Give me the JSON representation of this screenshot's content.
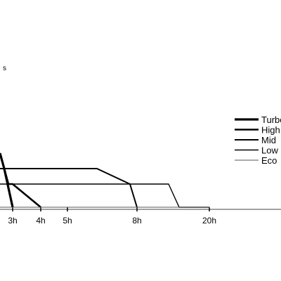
{
  "chart_data": {
    "type": "line",
    "title": "",
    "xlabel": "",
    "ylabel": "s",
    "x_ticks": [
      "3h",
      "4h",
      "5h",
      "8h",
      "20h"
    ],
    "grid": false,
    "legend_position": "right",
    "series": [
      {
        "name": "Turbo",
        "stroke": "heavy",
        "points": [
          [
            "0h",
            "high"
          ],
          [
            "1h",
            "mid"
          ],
          [
            "3h",
            "empty"
          ]
        ]
      },
      {
        "name": "High",
        "stroke": "bold",
        "points": [
          [
            "0h",
            "high"
          ],
          [
            "2h",
            "low"
          ],
          [
            "3h",
            "low"
          ],
          [
            "4h",
            "empty"
          ]
        ]
      },
      {
        "name": "Mid",
        "stroke": "medium",
        "points": [
          [
            "0h",
            "mid"
          ],
          [
            "6h",
            "mid"
          ],
          [
            "7h",
            "low"
          ],
          [
            "8h",
            "empty"
          ]
        ]
      },
      {
        "name": "Low",
        "stroke": "thin",
        "points": [
          [
            "0h",
            "low"
          ],
          [
            "14h",
            "low"
          ],
          [
            "16h",
            "empty"
          ],
          [
            "20h",
            "empty"
          ]
        ]
      },
      {
        "name": "Eco",
        "stroke": "hairline",
        "points": [
          [
            "0h",
            "empty"
          ],
          [
            "20h",
            "empty"
          ]
        ]
      }
    ],
    "colors": {
      "line": "#000000",
      "eco_line": "#555555"
    }
  }
}
